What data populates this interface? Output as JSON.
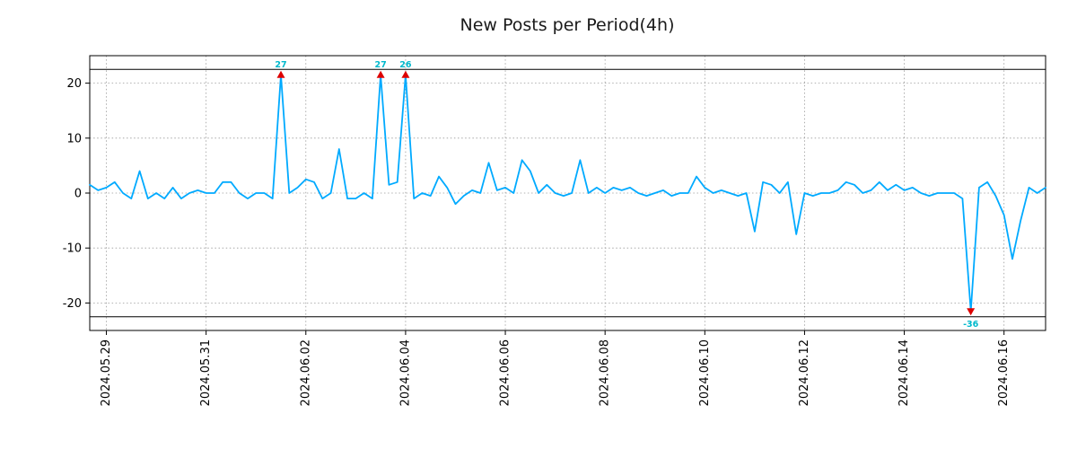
{
  "chart_data": {
    "type": "line",
    "title": "New Posts per Period(4h)",
    "period": "4h",
    "line_color": "#00aaff",
    "marker_color": "#dd0000",
    "annotation_color": "#00b8cc",
    "grid_color": "#9a9a9a",
    "grid": true,
    "ylim": [
      -25,
      25
    ],
    "y_ticks": [
      -20,
      -10,
      0,
      10,
      20
    ],
    "clip_lines": [
      22.5,
      -22.5
    ],
    "clip_value": 21.5,
    "x_tick_indices": [
      2,
      14,
      26,
      38,
      50,
      62,
      74,
      86,
      98,
      110
    ],
    "x_tick_labels": [
      "2024.05.29",
      "2024.05.31",
      "2024.06.02",
      "2024.06.04",
      "2024.06.06",
      "2024.06.08",
      "2024.06.10",
      "2024.06.12",
      "2024.06.14",
      "2024.06.16"
    ],
    "values": [
      1.5,
      0.5,
      1,
      2,
      0,
      -1,
      4,
      -1,
      0,
      -1,
      1,
      -1,
      0,
      0.5,
      0,
      0,
      2,
      2,
      0,
      -1,
      0,
      0,
      -1,
      27,
      0,
      1,
      2.5,
      2,
      -1,
      0,
      8,
      -1,
      -1,
      0,
      -1,
      27,
      1.5,
      2,
      26,
      -1,
      0,
      -0.5,
      3,
      1,
      -2,
      -0.5,
      0.5,
      0,
      5.5,
      0.5,
      1,
      0,
      6,
      4,
      0,
      1.5,
      0,
      -0.5,
      0,
      6,
      0,
      1,
      0,
      1,
      0.5,
      1,
      0,
      -0.5,
      0,
      0.5,
      -0.5,
      0,
      0,
      3,
      1,
      0,
      0.5,
      0,
      -0.5,
      0,
      -7,
      2,
      1.5,
      0,
      2,
      -7.5,
      0,
      -0.5,
      0,
      0,
      0.5,
      2,
      1.5,
      0,
      0.5,
      2,
      0.5,
      1.5,
      0.5,
      1,
      0,
      -0.5,
      0,
      0,
      0,
      -1,
      -36,
      1,
      2,
      -0.5,
      -4,
      -12,
      -5,
      1,
      0,
      1
    ],
    "annotations": [
      {
        "index": 23,
        "value": 27,
        "label": "27",
        "type": "max"
      },
      {
        "index": 35,
        "value": 27,
        "label": "27",
        "type": "max"
      },
      {
        "index": 38,
        "value": 26,
        "label": "26",
        "type": "max"
      },
      {
        "index": 106,
        "value": -36,
        "label": "-36",
        "type": "min"
      }
    ]
  }
}
